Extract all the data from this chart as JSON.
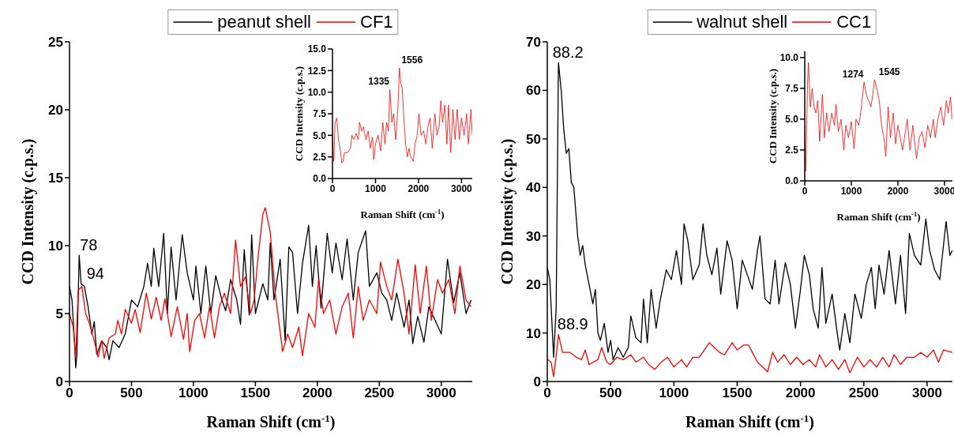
{
  "chart_data": [
    {
      "type": "line",
      "xlabel": "Raman Shift (cm$^{-1}$)",
      "ylabel": "CCD Intensity (c.p.s.)",
      "xlim": [
        0,
        3250
      ],
      "xticks": [
        0,
        500,
        1000,
        1500,
        2000,
        2500,
        3000
      ],
      "ylim": [
        0,
        25
      ],
      "yticks": [
        0,
        5,
        10,
        15,
        20,
        25
      ],
      "legend": "top",
      "grid": false,
      "marker": "none",
      "line_style": "solid",
      "annotations": [
        {
          "text": "78",
          "x": 78,
          "y": 9.3
        },
        {
          "text": "94",
          "x": 94,
          "y": 7.2
        }
      ],
      "series": [
        {
          "name": "peanut shell",
          "color": "#000000",
          "x": [
            0,
            20,
            40,
            50,
            60,
            78,
            94,
            120,
            150,
            180,
            200,
            220,
            260,
            300,
            320,
            350,
            400,
            450,
            500,
            550,
            600,
            630,
            660,
            680,
            720,
            760,
            790,
            820,
            860,
            910,
            950,
            1000,
            1020,
            1060,
            1100,
            1140,
            1180,
            1230,
            1260,
            1300,
            1350,
            1380,
            1410,
            1450,
            1470,
            1500,
            1560,
            1600,
            1620,
            1650,
            1700,
            1740,
            1770,
            1800,
            1840,
            1880,
            1930,
            1960,
            1990,
            2030,
            2080,
            2120,
            2150,
            2200,
            2240,
            2290,
            2330,
            2390,
            2420,
            2480,
            2520,
            2560,
            2600,
            2640,
            2700,
            2740,
            2770,
            2810,
            2860,
            2900,
            2950,
            3000,
            3050,
            3100,
            3150,
            3200,
            3240
          ],
          "values": [
            7,
            6,
            3,
            1,
            2,
            9.3,
            7.2,
            7,
            5.5,
            3.5,
            4.4,
            2,
            3,
            2.5,
            1.6,
            3,
            2.5,
            3.5,
            6,
            5.5,
            7,
            8.7,
            7,
            9.8,
            7,
            10.9,
            5,
            9.9,
            6,
            10.8,
            8,
            6,
            8.5,
            5,
            8.5,
            5,
            7.8,
            6,
            5.2,
            7.5,
            6,
            4.2,
            9.7,
            4.9,
            10.8,
            5,
            7.2,
            6,
            10.2,
            6,
            9,
            3,
            9.9,
            9.5,
            5,
            8.7,
            11.5,
            7,
            10,
            5.4,
            10.9,
            8,
            10.2,
            7.5,
            10.5,
            6,
            9.5,
            11.1,
            7,
            8,
            6.5,
            6,
            4.5,
            6.5,
            4,
            6,
            2.8,
            4.8,
            2.9,
            5.5,
            4.5,
            3.5,
            9,
            5.8,
            8,
            5,
            6
          ]
        },
        {
          "name": "CF1",
          "color": "#ff0000",
          "x": [
            0,
            30,
            50,
            70,
            100,
            130,
            160,
            200,
            230,
            260,
            280,
            320,
            370,
            390,
            420,
            450,
            500,
            530,
            570,
            620,
            660,
            700,
            740,
            770,
            820,
            870,
            920,
            950,
            970,
            1010,
            1050,
            1090,
            1130,
            1170,
            1210,
            1250,
            1300,
            1340,
            1380,
            1420,
            1460,
            1490,
            1520,
            1560,
            1580,
            1620,
            1660,
            1720,
            1760,
            1800,
            1850,
            1880,
            1930,
            1980,
            2010,
            2050,
            2100,
            2150,
            2200,
            2250,
            2290,
            2330,
            2370,
            2420,
            2480,
            2510,
            2560,
            2600,
            2650,
            2700,
            2740,
            2790,
            2830,
            2880,
            2920,
            2970,
            3010,
            3060,
            3110,
            3150,
            3200,
            3240
          ],
          "values": [
            5,
            4,
            1.8,
            6.7,
            7,
            5,
            4.3,
            3,
            1.8,
            3,
            1.7,
            3.2,
            3.5,
            4.5,
            3.5,
            5.3,
            4.3,
            5.3,
            3.6,
            6.5,
            4.6,
            6.2,
            4.5,
            6.1,
            3.3,
            5.5,
            3.1,
            5,
            2.2,
            4.5,
            5,
            3.2,
            5.5,
            3.2,
            5.5,
            6.5,
            5,
            10.4,
            7,
            7.7,
            5,
            6,
            9,
            12.3,
            12.8,
            11,
            6.5,
            2.2,
            3.5,
            2.5,
            4,
            1.9,
            5,
            4,
            7.5,
            5,
            6,
            3.5,
            5.5,
            6.5,
            3.2,
            7,
            4.5,
            6,
            5,
            8.8,
            7,
            6,
            9,
            6.5,
            3.5,
            8.6,
            5,
            8.5,
            4.5,
            7.5,
            6.5,
            7.5,
            5,
            8.5,
            6,
            5.5
          ]
        }
      ]
    },
    {
      "type": "line",
      "xlabel": "Raman Shift (cm$^{-1}$)",
      "ylabel": "CCD Intensity (c.p.s.)",
      "xlim": [
        0,
        3250
      ],
      "xticks": [
        0,
        1000,
        2000,
        3000
      ],
      "ylim": [
        0,
        15
      ],
      "yticks": [
        {
          "value": 0,
          "label": "0.0"
        },
        {
          "value": 2.5,
          "label": "2.5"
        },
        {
          "value": 5,
          "label": "5.0"
        },
        {
          "value": 7.5,
          "label": "7.5"
        },
        {
          "value": 10,
          "label": "10.0"
        },
        {
          "value": 12.5,
          "label": "12.5"
        },
        {
          "value": 15,
          "label": "15.0"
        }
      ],
      "grid": false,
      "marker": "none",
      "line_style": "solid",
      "annotations": [
        {
          "text": "1335",
          "x": 1335,
          "y": 10.3
        },
        {
          "text": "1556",
          "x": 1556,
          "y": 12.8
        }
      ],
      "series": [
        {
          "color": "#ff0000",
          "x": [
            0,
            30,
            60,
            100,
            140,
            190,
            220,
            250,
            280,
            350,
            420,
            450,
            500,
            550,
            600,
            630,
            680,
            720,
            780,
            830,
            880,
            930,
            960,
            1000,
            1060,
            1120,
            1170,
            1220,
            1260,
            1300,
            1335,
            1380,
            1420,
            1470,
            1520,
            1556,
            1590,
            1620,
            1660,
            1700,
            1740,
            1780,
            1820,
            1880,
            1920,
            1970,
            2010,
            2060,
            2120,
            2170,
            2220,
            2270,
            2320,
            2380,
            2430,
            2480,
            2520,
            2560,
            2610,
            2660,
            2700,
            2750,
            2800,
            2850,
            2900,
            2950,
            3000,
            3060,
            3120,
            3160,
            3220,
            3250
          ],
          "values": [
            5,
            2,
            6.5,
            7,
            4.5,
            3,
            1.8,
            2,
            3,
            3,
            3.5,
            5,
            4.5,
            5.2,
            4.5,
            6.5,
            5.5,
            6,
            4.5,
            5.5,
            3.5,
            4.8,
            2.2,
            4,
            5,
            3.2,
            6.5,
            4,
            6.5,
            5.5,
            10.3,
            6.5,
            7.5,
            4.5,
            8,
            12.8,
            11,
            10.5,
            7,
            4,
            2.5,
            3.5,
            2.5,
            2,
            4,
            5,
            7.5,
            5,
            5.5,
            4,
            6,
            7,
            3.5,
            7.5,
            5,
            6,
            9,
            6.5,
            8.5,
            4,
            8.5,
            3,
            8,
            4.5,
            8,
            4.5,
            7,
            5,
            7.5,
            4,
            8,
            5
          ]
        }
      ]
    },
    {
      "type": "line",
      "xlabel": "Raman Shift (cm$^{-1}$)",
      "ylabel": "CCD Intensity (c.p.s.)",
      "xlim": [
        0,
        3200
      ],
      "xticks": [
        0,
        500,
        1000,
        1500,
        2000,
        2500,
        3000
      ],
      "ylim": [
        0,
        70
      ],
      "yticks": [
        0,
        10,
        20,
        30,
        40,
        50,
        60,
        70
      ],
      "legend": "top",
      "grid": false,
      "marker": "none",
      "line_style": "solid",
      "annotations": [
        {
          "text": "88.2",
          "x": 88.2,
          "y": 65.7
        },
        {
          "text": "88.9",
          "x": 88.9,
          "y": 9.7
        }
      ],
      "series": [
        {
          "name": "walnut shell",
          "color": "#000000",
          "x": [
            0,
            20,
            50,
            70,
            88.2,
            110,
            130,
            150,
            170,
            190,
            210,
            240,
            260,
            280,
            300,
            330,
            360,
            380,
            400,
            420,
            450,
            480,
            500,
            520,
            560,
            600,
            640,
            660,
            700,
            740,
            760,
            790,
            820,
            860,
            890,
            940,
            980,
            1020,
            1060,
            1080,
            1110,
            1150,
            1200,
            1230,
            1260,
            1300,
            1340,
            1370,
            1420,
            1460,
            1500,
            1540,
            1580,
            1620,
            1660,
            1680,
            1720,
            1760,
            1800,
            1830,
            1880,
            1920,
            1960,
            2000,
            2030,
            2070,
            2100,
            2140,
            2170,
            2200,
            2250,
            2290,
            2310,
            2350,
            2390,
            2430,
            2480,
            2520,
            2560,
            2590,
            2620,
            2660,
            2700,
            2750,
            2790,
            2830,
            2860,
            2900,
            2950,
            2990,
            3020,
            3060,
            3100,
            3150,
            3180,
            3200
          ],
          "values": [
            23.5,
            21,
            5,
            15,
            65.7,
            60,
            52,
            47,
            48,
            41,
            40,
            30,
            26,
            28,
            24,
            20,
            16,
            19,
            10,
            8.5,
            12,
            6,
            8.5,
            4.5,
            7,
            5,
            7,
            13.5,
            9,
            8,
            17,
            8,
            19,
            11,
            16.5,
            23,
            21,
            27,
            20,
            32.5,
            29,
            21,
            24,
            32.5,
            26,
            22,
            27.5,
            18,
            29,
            25,
            15,
            25,
            22,
            19,
            27,
            30,
            17,
            16,
            25,
            16,
            24.5,
            20,
            11,
            19,
            26,
            22,
            15,
            11,
            23.5,
            12,
            18,
            10,
            6.5,
            14,
            8,
            18,
            13,
            20,
            23.5,
            15,
            24,
            18,
            27,
            16,
            26,
            14,
            30.5,
            26,
            24,
            33.5,
            27,
            23,
            21,
            33,
            26,
            27
          ]
        },
        {
          "name": "CC1",
          "color": "#ff0000",
          "x": [
            0,
            30,
            50,
            60,
            88.9,
            120,
            180,
            230,
            270,
            300,
            330,
            400,
            430,
            470,
            500,
            550,
            600,
            660,
            700,
            760,
            800,
            850,
            900,
            950,
            1000,
            1060,
            1100,
            1150,
            1200,
            1240,
            1280,
            1320,
            1360,
            1400,
            1460,
            1500,
            1550,
            1590,
            1620,
            1660,
            1700,
            1740,
            1780,
            1820,
            1870,
            1920,
            1970,
            2020,
            2070,
            2120,
            2150,
            2200,
            2250,
            2300,
            2350,
            2390,
            2450,
            2500,
            2550,
            2600,
            2650,
            2700,
            2740,
            2790,
            2840,
            2900,
            2950,
            3000,
            3050,
            3090,
            3130,
            3200
          ],
          "values": [
            4.6,
            4,
            1,
            3,
            9.7,
            6,
            6,
            5,
            4.5,
            6.5,
            3.5,
            4.5,
            7,
            4,
            3.5,
            5,
            4.5,
            5.5,
            4,
            5,
            3.5,
            2.5,
            4,
            5,
            3,
            4.5,
            3,
            5,
            5,
            6.5,
            8,
            7,
            6,
            5.5,
            8,
            6.5,
            7.5,
            7.5,
            6,
            4,
            3,
            2,
            6,
            4,
            5.5,
            3.5,
            5,
            3.5,
            4.5,
            3,
            5.5,
            3,
            4.5,
            2.5,
            4.5,
            1.8,
            5,
            3,
            4.5,
            3,
            5,
            3,
            5.5,
            3.5,
            5,
            5,
            6,
            5,
            6.5,
            4,
            6.5,
            6
          ]
        }
      ]
    },
    {
      "type": "line",
      "xlabel": "Raman Shift (cm$^{-1}$)",
      "ylabel": "CCD Intensity (c.p.s.)",
      "xlim": [
        0,
        3170
      ],
      "xticks": [
        0,
        1000,
        2000,
        3000
      ],
      "ylim": [
        0,
        10.5
      ],
      "yticks": [
        {
          "value": 0,
          "label": "0.0"
        },
        {
          "value": 2.5,
          "label": "2.5"
        },
        {
          "value": 5,
          "label": "5.0"
        },
        {
          "value": 7.5,
          "label": "7.5"
        },
        {
          "value": 10,
          "label": "10.0"
        }
      ],
      "grid": false,
      "marker": "none",
      "line_style": "solid",
      "annotations": [
        {
          "text": "1274",
          "x": 1274,
          "y": 8
        },
        {
          "text": "1545",
          "x": 1545,
          "y": 8.2
        }
      ],
      "series": [
        {
          "color": "#ff0000",
          "x": [
            0,
            20,
            40,
            60,
            80,
            120,
            160,
            200,
            240,
            280,
            320,
            380,
            420,
            470,
            520,
            580,
            640,
            670,
            720,
            780,
            840,
            880,
            940,
            1000,
            1060,
            1100,
            1160,
            1200,
            1274,
            1320,
            1370,
            1420,
            1460,
            1500,
            1545,
            1600,
            1650,
            1700,
            1740,
            1790,
            1840,
            1900,
            1950,
            2000,
            2050,
            2100,
            2160,
            2200,
            2260,
            2320,
            2400,
            2460,
            2520,
            2580,
            2640,
            2700,
            2760,
            2800,
            2860,
            2920,
            2980,
            3040,
            3080,
            3130,
            3160
          ],
          "values": [
            4.5,
            0.8,
            4,
            8,
            9.6,
            6,
            7.5,
            6,
            5.5,
            6.5,
            3.2,
            7,
            3.5,
            5.5,
            4,
            5.5,
            4.5,
            6.2,
            4,
            5,
            2.5,
            4.5,
            3.5,
            4.8,
            2.6,
            5,
            4.5,
            5.5,
            8,
            7,
            6.5,
            6,
            7,
            8.2,
            7.5,
            6.5,
            4.5,
            3.5,
            2,
            6,
            3.5,
            5.5,
            3,
            4.5,
            3.5,
            2.5,
            4,
            5,
            2.5,
            4.5,
            1.8,
            3.5,
            4,
            2.7,
            4.5,
            3.5,
            5,
            3.5,
            5,
            6,
            4.5,
            6.5,
            5.5,
            6.8,
            5
          ]
        }
      ]
    }
  ]
}
